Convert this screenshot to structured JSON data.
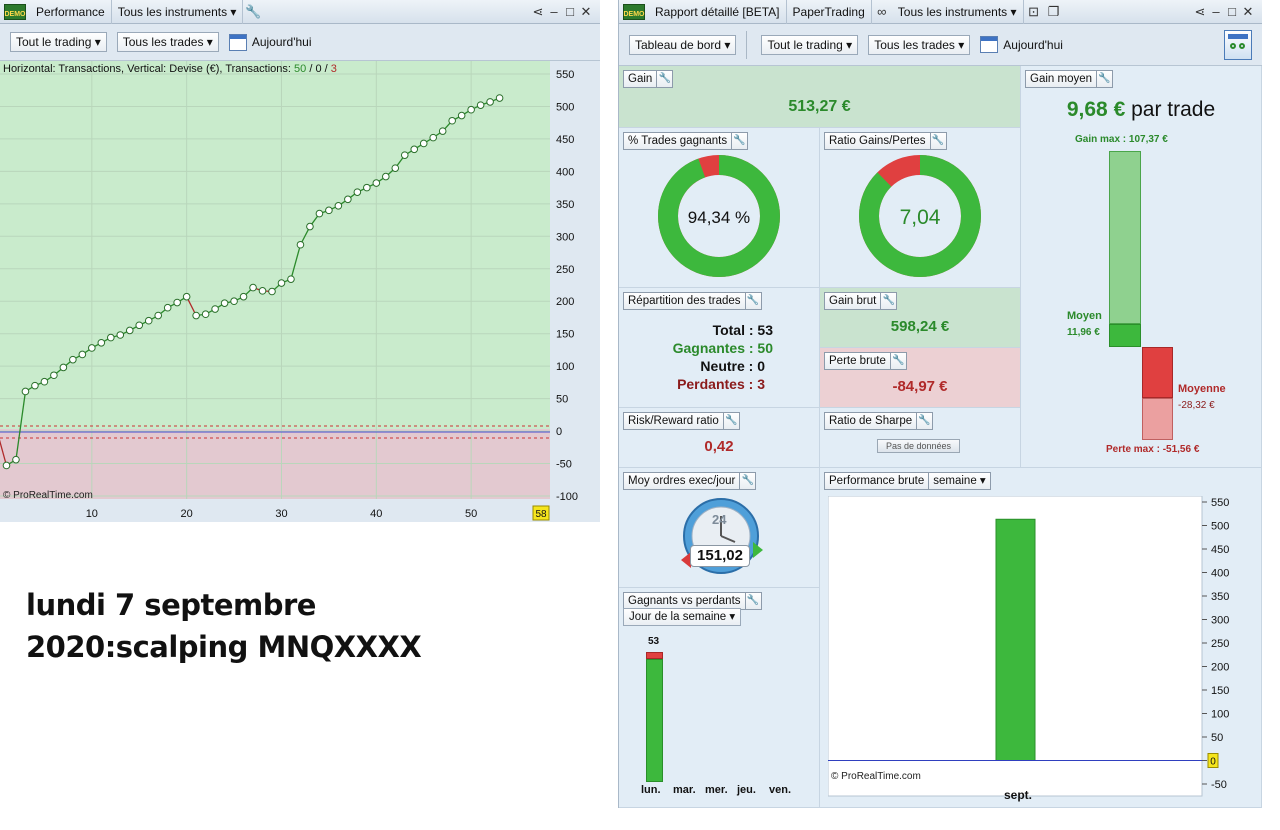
{
  "left_window": {
    "title": "Performance",
    "instrument_selector": "Tous les instruments ▾",
    "toolbar": {
      "trading_filter": "Tout le trading ▾",
      "trades_filter": "Tous les trades ▾",
      "date_label": "Aujourd'hui"
    },
    "chart_header": {
      "prefix": "Horizontal: Transactions, Vertical: Devise (€), Transactions: ",
      "wins": "50",
      "sep1": " / ",
      "neutral": "0",
      "sep2": " / ",
      "losses": "3"
    },
    "watermark": "© ProRealTime.com",
    "last_badge": "58"
  },
  "chart_data": {
    "type": "line",
    "title": "Horizontal: Transactions, Vertical: Devise (€), Transactions: 50 / 0 / 3",
    "xlabel": "Transactions",
    "ylabel": "Devise (€)",
    "xlim": [
      0,
      58
    ],
    "ylim": [
      -100,
      550
    ],
    "x_ticks": [
      10,
      20,
      30,
      40,
      50
    ],
    "y_ticks": [
      550,
      500,
      450,
      400,
      350,
      300,
      250,
      200,
      150,
      100,
      50,
      0,
      -50,
      -100
    ],
    "x_tick_labels": [
      "10",
      "20",
      "30",
      "40",
      "50"
    ],
    "y_tick_labels": [
      "550",
      "500",
      "450",
      "400",
      "350",
      "300",
      "250",
      "200",
      "150",
      "100",
      "50",
      "0",
      "-50",
      "-100"
    ],
    "grid": true,
    "x": [
      0,
      1,
      2,
      3,
      4,
      5,
      6,
      7,
      8,
      9,
      10,
      11,
      12,
      13,
      14,
      15,
      16,
      17,
      18,
      19,
      20,
      21,
      22,
      23,
      24,
      25,
      26,
      27,
      28,
      29,
      30,
      31,
      32,
      33,
      34,
      35,
      36,
      37,
      38,
      39,
      40,
      41,
      42,
      43,
      44,
      45,
      46,
      47,
      48,
      49,
      50,
      51,
      52,
      53
    ],
    "values": [
      0,
      -53,
      -44,
      61,
      70,
      76,
      86,
      98,
      110,
      118,
      128,
      136,
      144,
      148,
      155,
      163,
      170,
      178,
      190,
      198,
      207,
      178,
      180,
      188,
      197,
      200,
      207,
      221,
      216,
      215,
      228,
      234,
      287,
      315,
      335,
      340,
      347,
      357,
      368,
      375,
      382,
      392,
      405,
      425,
      434,
      443,
      452,
      462,
      478,
      486,
      495,
      502,
      507,
      513
    ]
  },
  "annotation": {
    "line1": "lundi 7 septembre",
    "line2": "2020:scalping MNQXXXX"
  },
  "right_window": {
    "tab_report": "Rapport détaillé [BETA]",
    "tab_account": "PaperTrading",
    "instrument_selector": "Tous les instruments ▾",
    "toolbar": {
      "view_selector": "Tableau de bord ▾",
      "trading_filter": "Tout le trading ▾",
      "trades_filter": "Tous les trades ▾",
      "date_label": "Aujourd'hui"
    },
    "gain": {
      "label": "Gain",
      "value": "513,27 €"
    },
    "win_pct": {
      "label": "% Trades gagnants",
      "value": "94,34 %",
      "fraction": 0.9434
    },
    "ratio": {
      "label": "Ratio Gains/Pertes",
      "value": "7,04",
      "fraction": 0.8756
    },
    "breakdown": {
      "label": "Répartition des trades",
      "total": "Total : 53",
      "wins": "Gagnantes : 50",
      "neutral": "Neutre : 0",
      "losses": "Perdantes : 3"
    },
    "gross_gain": {
      "label": "Gain brut",
      "value": "598,24 €"
    },
    "gross_loss": {
      "label": "Perte brute",
      "value": "-84,97 €"
    },
    "risk_reward": {
      "label": "Risk/Reward ratio",
      "value": "0,42"
    },
    "sharpe": {
      "label": "Ratio de Sharpe",
      "no_data": "Pas de données"
    },
    "avg_gain": {
      "label": "Gain moyen",
      "value": "9,68 €",
      "suffix": " par trade",
      "max_gain_label": "Gain max : 107,37 €",
      "avg_win_label": "Moyen",
      "avg_win_value": "11,96 €",
      "avg_loss_label": "Moyenne",
      "avg_loss_value": "-28,32 €",
      "max_loss_label": "Perte max : -51,56 €"
    },
    "exec_per_day": {
      "label": "Moy ordres exec/jour",
      "dial_number": "24",
      "value": "151,02"
    },
    "gross_perf": {
      "label": "Performance brute",
      "period": "semaine ▾",
      "watermark": "© ProRealTime.com",
      "x_label": "sept.",
      "zero_badge": "0",
      "y_ticks": [
        "550",
        "500",
        "450",
        "400",
        "350",
        "300",
        "250",
        "200",
        "150",
        "100",
        "50",
        "0",
        "-50"
      ],
      "bar_value": 513.27
    },
    "wins_vs_losses": {
      "label": "Gagnants vs perdants",
      "period": "Jour de la semaine ▾",
      "count": "53",
      "days": [
        "lun.",
        "mar.",
        "mer.",
        "jeu.",
        "ven."
      ],
      "wins": 50,
      "losses": 3
    }
  }
}
